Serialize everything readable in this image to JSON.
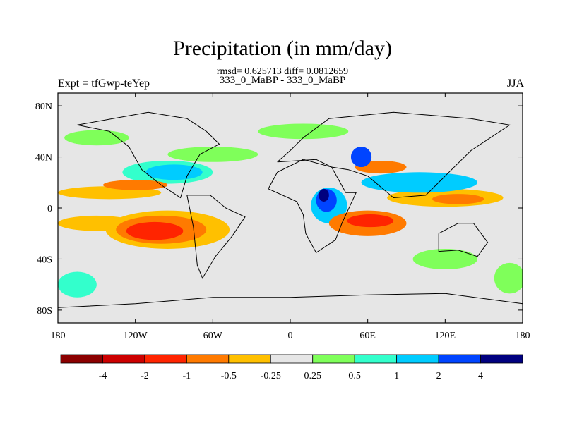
{
  "title": "Precipitation (in mm/day)",
  "subtitle": "rmsd= 0.625713 diff= 0.0812659",
  "subtitle2": "333_0_MaBP - 333_0_MaBP",
  "left_label": "Expt = tfGwp-teYep",
  "right_label": "JJA",
  "map": {
    "lon_ticks": [
      {
        "lon": -180,
        "label": "180"
      },
      {
        "lon": -120,
        "label": "120W"
      },
      {
        "lon": -60,
        "label": "60W"
      },
      {
        "lon": 0,
        "label": "0"
      },
      {
        "lon": 60,
        "label": "60E"
      },
      {
        "lon": 120,
        "label": "120E"
      },
      {
        "lon": 180,
        "label": "180"
      }
    ],
    "lat_ticks": [
      {
        "lat": 80,
        "label": "80N"
      },
      {
        "lat": 40,
        "label": "40N"
      },
      {
        "lat": 0,
        "label": "0"
      },
      {
        "lat": -40,
        "label": "40S"
      },
      {
        "lat": -80,
        "label": "80S"
      }
    ],
    "lon_range": [
      -180,
      180
    ],
    "lat_range": [
      -90,
      90
    ],
    "background_color": "#e6e6e6"
  },
  "colorbar": {
    "colors": [
      "#8b0000",
      "#cc0000",
      "#ff2400",
      "#ff7a00",
      "#ffc000",
      "#e6e6e6",
      "#7fff5a",
      "#33ffcc",
      "#00ccff",
      "#0044ff",
      "#00007f"
    ],
    "labels": [
      "-4",
      "-2",
      "-1",
      "-0.5",
      "-0.25",
      "0.25",
      "0.5",
      "1",
      "2",
      "4"
    ]
  },
  "anomalies": [
    {
      "lon": -105,
      "lat": -18,
      "rx": 22,
      "ry": 7,
      "level": -2
    },
    {
      "lon": -100,
      "lat": -17,
      "rx": 35,
      "ry": 11,
      "level": -1
    },
    {
      "lon": -95,
      "lat": -17,
      "rx": 48,
      "ry": 15,
      "level": -0.5
    },
    {
      "lon": -150,
      "lat": -12,
      "rx": 30,
      "ry": 6,
      "level": -0.5
    },
    {
      "lon": -140,
      "lat": 12,
      "rx": 40,
      "ry": 5,
      "level": -0.5
    },
    {
      "lon": -120,
      "lat": 18,
      "rx": 25,
      "ry": 4,
      "level": -1
    },
    {
      "lon": -95,
      "lat": 28,
      "rx": 35,
      "ry": 9,
      "level": 0.5
    },
    {
      "lon": -90,
      "lat": 28,
      "rx": 22,
      "ry": 6,
      "level": 1
    },
    {
      "lon": -60,
      "lat": 42,
      "rx": 35,
      "ry": 6,
      "level": 0.25
    },
    {
      "lon": -150,
      "lat": 55,
      "rx": 25,
      "ry": 6,
      "level": 0.25
    },
    {
      "lon": 10,
      "lat": 60,
      "rx": 35,
      "ry": 6,
      "level": 0.25
    },
    {
      "lon": 30,
      "lat": 2,
      "rx": 14,
      "ry": 14,
      "level": 1
    },
    {
      "lon": 28,
      "lat": 6,
      "rx": 8,
      "ry": 9,
      "level": 2
    },
    {
      "lon": 26,
      "lat": 10,
      "rx": 4,
      "ry": 5,
      "level": 4
    },
    {
      "lon": 60,
      "lat": -12,
      "rx": 30,
      "ry": 10,
      "level": -1
    },
    {
      "lon": 62,
      "lat": -10,
      "rx": 18,
      "ry": 5,
      "level": -2
    },
    {
      "lon": 100,
      "lat": 20,
      "rx": 45,
      "ry": 8,
      "level": 1
    },
    {
      "lon": 120,
      "lat": 8,
      "rx": 45,
      "ry": 7,
      "level": -0.5
    },
    {
      "lon": 130,
      "lat": 7,
      "rx": 20,
      "ry": 4,
      "level": -1
    },
    {
      "lon": 55,
      "lat": 40,
      "rx": 8,
      "ry": 8,
      "level": 2
    },
    {
      "lon": 70,
      "lat": 32,
      "rx": 20,
      "ry": 5,
      "level": -1
    },
    {
      "lon": 120,
      "lat": -40,
      "rx": 25,
      "ry": 8,
      "level": 0.25
    },
    {
      "lon": -165,
      "lat": -60,
      "rx": 15,
      "ry": 10,
      "level": 0.5
    },
    {
      "lon": 170,
      "lat": -55,
      "rx": 12,
      "ry": 12,
      "level": 0.25
    }
  ],
  "coastlines": [
    {
      "name": "africa",
      "points": [
        [
          -17,
          15
        ],
        [
          -10,
          28
        ],
        [
          10,
          38
        ],
        [
          32,
          32
        ],
        [
          43,
          12
        ],
        [
          51,
          12
        ],
        [
          40,
          -12
        ],
        [
          35,
          -25
        ],
        [
          20,
          -35
        ],
        [
          12,
          -20
        ],
        [
          10,
          -5
        ],
        [
          5,
          5
        ],
        [
          -17,
          15
        ]
      ]
    },
    {
      "name": "south-america",
      "points": [
        [
          -80,
          10
        ],
        [
          -75,
          -15
        ],
        [
          -72,
          -45
        ],
        [
          -68,
          -55
        ],
        [
          -58,
          -38
        ],
        [
          -45,
          -22
        ],
        [
          -35,
          -7
        ],
        [
          -50,
          0
        ],
        [
          -62,
          10
        ],
        [
          -80,
          10
        ]
      ]
    },
    {
      "name": "north-america",
      "points": [
        [
          -165,
          65
        ],
        [
          -140,
          60
        ],
        [
          -125,
          48
        ],
        [
          -115,
          30
        ],
        [
          -100,
          18
        ],
        [
          -85,
          8
        ],
        [
          -80,
          25
        ],
        [
          -70,
          42
        ],
        [
          -55,
          50
        ],
        [
          -65,
          60
        ],
        [
          -80,
          70
        ],
        [
          -110,
          75
        ],
        [
          -165,
          65
        ]
      ]
    },
    {
      "name": "eurasia",
      "points": [
        [
          -10,
          36
        ],
        [
          0,
          45
        ],
        [
          10,
          55
        ],
        [
          30,
          70
        ],
        [
          80,
          75
        ],
        [
          140,
          70
        ],
        [
          170,
          65
        ],
        [
          140,
          45
        ],
        [
          120,
          25
        ],
        [
          105,
          10
        ],
        [
          80,
          8
        ],
        [
          60,
          25
        ],
        [
          45,
          30
        ],
        [
          32,
          32
        ],
        [
          20,
          38
        ],
        [
          -10,
          36
        ]
      ]
    },
    {
      "name": "australia",
      "points": [
        [
          115,
          -20
        ],
        [
          130,
          -12
        ],
        [
          142,
          -12
        ],
        [
          153,
          -27
        ],
        [
          145,
          -38
        ],
        [
          130,
          -33
        ],
        [
          115,
          -34
        ],
        [
          115,
          -20
        ]
      ]
    },
    {
      "name": "antarctica",
      "points": [
        [
          -180,
          -78
        ],
        [
          -120,
          -75
        ],
        [
          -60,
          -70
        ],
        [
          0,
          -70
        ],
        [
          60,
          -68
        ],
        [
          120,
          -67
        ],
        [
          180,
          -75
        ]
      ]
    }
  ]
}
